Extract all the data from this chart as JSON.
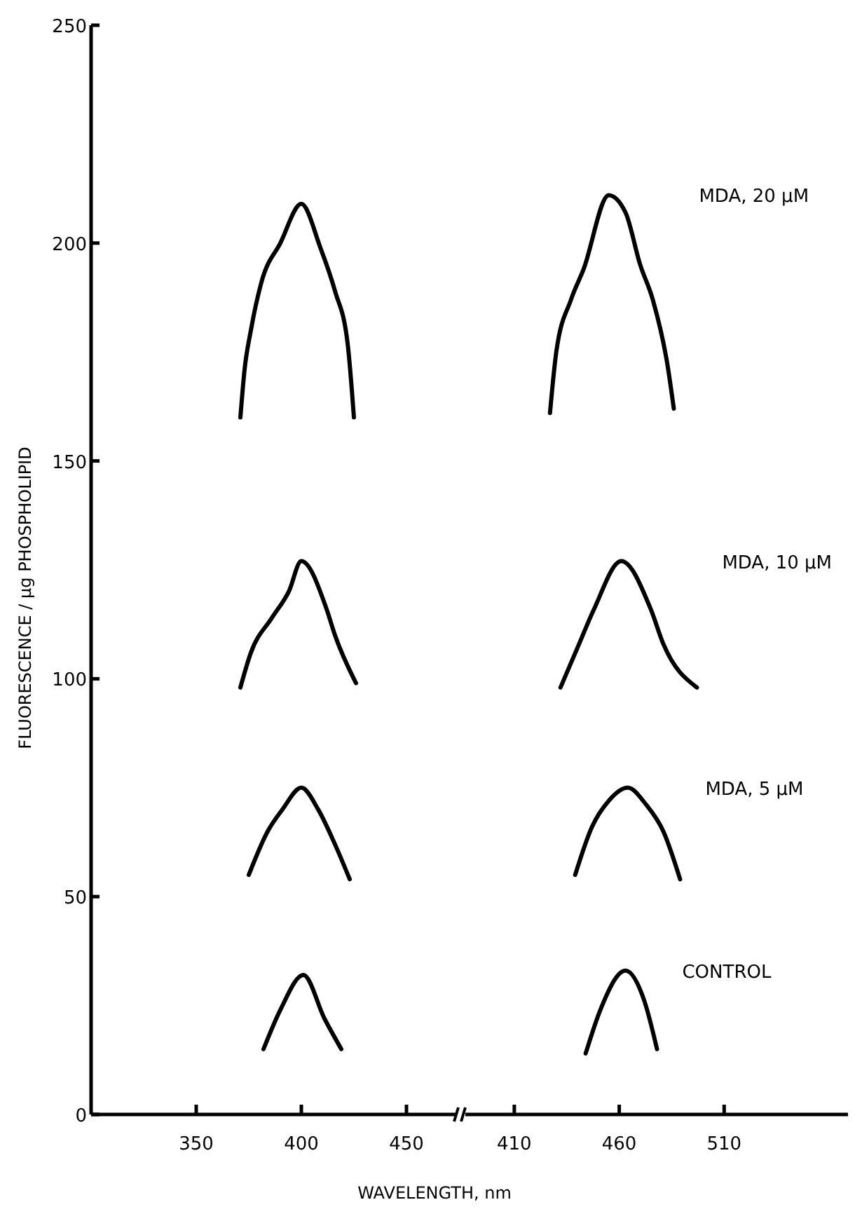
{
  "chart_data": [
    {
      "type": "line",
      "xlabel": "WAVELENGTH, nm",
      "ylabel": "FLUORESCENCE / µg PHOSPHOLIPID",
      "xlim": [
        300,
        474
      ],
      "xticks": [
        350,
        400,
        450
      ],
      "ylim": [
        0,
        250
      ],
      "yticks": [
        0,
        50,
        100,
        150,
        200,
        250
      ],
      "grid": false,
      "marker": "none",
      "line_style": "solid",
      "series": [
        {
          "color": "#000000",
          "x": [
            371,
            373,
            376,
            381,
            390,
            400,
            409,
            416,
            422,
            425
          ],
          "values": [
            160,
            171,
            180,
            191,
            200,
            209,
            199,
            189,
            177,
            160
          ]
        },
        {
          "color": "#000000",
          "x": [
            371,
            376,
            386,
            394,
            400,
            412,
            416,
            426
          ],
          "values": [
            98,
            106,
            114,
            120,
            127,
            116,
            110,
            99
          ]
        },
        {
          "color": "#000000",
          "x": [
            375,
            384,
            391,
            400,
            408,
            416,
            423
          ],
          "values": [
            55,
            65,
            70,
            75,
            70,
            62,
            54
          ]
        },
        {
          "color": "#000000",
          "x": [
            382,
            390,
            401,
            411,
            419
          ],
          "values": [
            15,
            24,
            32,
            22,
            15
          ]
        }
      ]
    },
    {
      "type": "line",
      "xlim": [
        386,
        569
      ],
      "xticks": [
        410,
        460,
        510
      ],
      "ylim": [
        0,
        250
      ],
      "tick_labels": "x",
      "grid": false,
      "marker": "none",
      "line_style": "solid",
      "series": [
        {
          "name": "MDA, 20 µM",
          "color": "#000000",
          "x": [
            427,
            430,
            437,
            443,
            455,
            463,
            470,
            476,
            483,
            486
          ],
          "values": [
            161,
            175,
            187,
            194,
            211,
            207,
            195,
            187,
            172,
            162
          ]
        },
        {
          "name": "MDA, 10 µM",
          "color": "#000000",
          "x": [
            432,
            440,
            448,
            461,
            475,
            481,
            497
          ],
          "values": [
            98,
            107,
            116,
            127,
            116,
            108,
            98
          ]
        },
        {
          "name": "MDA, 5 µM",
          "color": "#000000",
          "x": [
            439,
            447,
            455,
            464,
            473,
            481,
            489
          ],
          "values": [
            55,
            66,
            72,
            75,
            71,
            65,
            54
          ]
        },
        {
          "name": "CONTROL",
          "color": "#000000",
          "x": [
            444,
            451,
            463,
            472,
            478
          ],
          "values": [
            14,
            24,
            33,
            26,
            15
          ]
        }
      ]
    }
  ]
}
